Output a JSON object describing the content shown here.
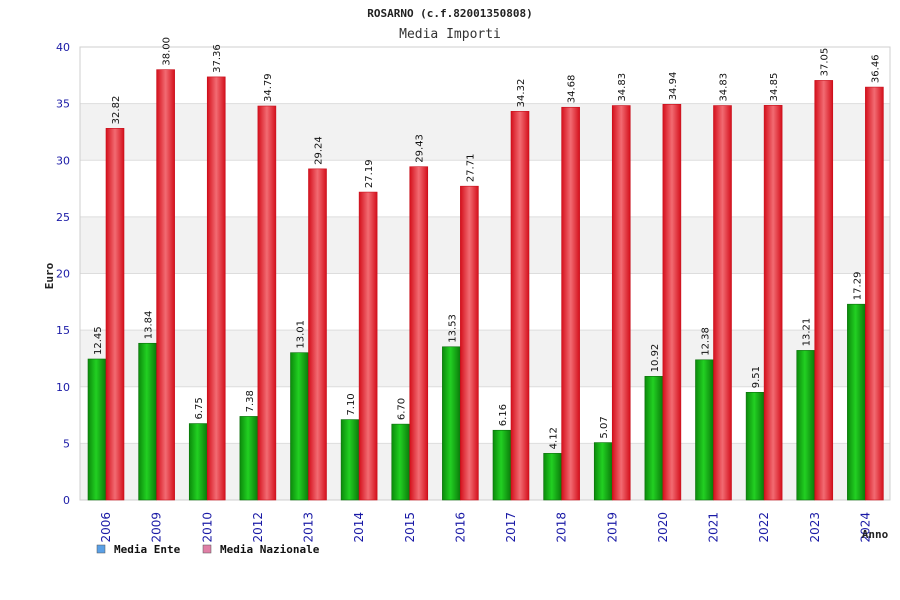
{
  "chart_data": {
    "type": "bar",
    "title": "ROSARNO (c.f.82001350808)",
    "subtitle": "Media Importi",
    "ylabel": "Euro",
    "xlabel": "Anno",
    "ylim": [
      0,
      40
    ],
    "yticks": [
      "0",
      "5",
      "10",
      "15",
      "20",
      "25",
      "30",
      "35",
      "40"
    ],
    "categories": [
      "2006",
      "2009",
      "2010",
      "2012",
      "2013",
      "2014",
      "2015",
      "2016",
      "2017",
      "2018",
      "2019",
      "2020",
      "2021",
      "2022",
      "2023",
      "2024"
    ],
    "series": [
      {
        "name": "Media Ente",
        "color": "#16c316",
        "values": [
          12.45,
          13.84,
          6.75,
          7.38,
          13.01,
          7.1,
          6.7,
          13.53,
          6.16,
          4.12,
          5.07,
          10.92,
          12.38,
          9.51,
          13.21,
          17.29
        ],
        "labels": [
          "12.45",
          "13.84",
          "6.75",
          "7.38",
          "13.01",
          "7.10",
          "6.70",
          "13.53",
          "6.16",
          "4.12",
          "5.07",
          "10.92",
          "12.38",
          "9.51",
          "13.21",
          "17.29"
        ]
      },
      {
        "name": "Media Nazionale",
        "color": "#ee2233",
        "values": [
          32.82,
          38.0,
          37.36,
          34.79,
          29.24,
          27.19,
          29.43,
          27.71,
          34.32,
          34.68,
          34.83,
          34.94,
          34.83,
          34.85,
          37.05,
          36.46
        ],
        "labels": [
          "32.82",
          "38.00",
          "37.36",
          "34.79",
          "29.24",
          "27.19",
          "29.43",
          "27.71",
          "34.32",
          "34.68",
          "34.83",
          "34.94",
          "34.83",
          "34.85",
          "37.05",
          "36.46"
        ]
      }
    ],
    "legend": {
      "placement": "bottom-left",
      "items": [
        {
          "label": "Media Ente",
          "color": "#5aa0e6"
        },
        {
          "label": "Media Nazionale",
          "color": "#e07fa6"
        }
      ]
    },
    "grid": true,
    "band_color": "#f2f2f2"
  }
}
